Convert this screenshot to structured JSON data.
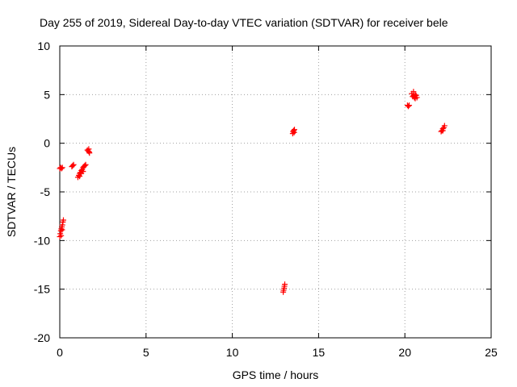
{
  "chart_data": {
    "type": "scatter",
    "title": "Day 255 of 2019, Sidereal Day-to-day VTEC variation (SDTVAR) for receiver bele",
    "xlabel": "GPS time / hours",
    "ylabel": "SDTVAR / TECUs",
    "xlim": [
      0,
      25
    ],
    "ylim": [
      -20,
      10
    ],
    "xticks": [
      0,
      5,
      10,
      15,
      20,
      25
    ],
    "yticks": [
      -20,
      -15,
      -10,
      -5,
      0,
      5,
      10
    ],
    "xtick_labels": [
      "0",
      "5",
      "10",
      "15",
      "20",
      "25"
    ],
    "ytick_labels": [
      "-20",
      "-15",
      "-10",
      "-5",
      "0",
      "5",
      "10"
    ],
    "grid": true,
    "marker": "+",
    "color": "#ff0000",
    "series": [
      {
        "name": "SDTVAR",
        "points": [
          [
            0.0,
            -2.6
          ],
          [
            0.05,
            -2.5
          ],
          [
            0.1,
            -2.6
          ],
          [
            0.15,
            -2.5
          ],
          [
            0.0,
            -9.6
          ],
          [
            0.03,
            -9.3
          ],
          [
            0.06,
            -9.0
          ],
          [
            0.09,
            -8.8
          ],
          [
            0.12,
            -8.6
          ],
          [
            0.15,
            -8.4
          ],
          [
            0.18,
            -8.1
          ],
          [
            0.21,
            -7.9
          ],
          [
            0.08,
            -9.5
          ],
          [
            0.14,
            -8.9
          ],
          [
            0.7,
            -2.4
          ],
          [
            0.75,
            -2.3
          ],
          [
            0.8,
            -2.2
          ],
          [
            1.05,
            -3.5
          ],
          [
            1.1,
            -3.3
          ],
          [
            1.15,
            -3.1
          ],
          [
            1.2,
            -3.0
          ],
          [
            1.25,
            -2.8
          ],
          [
            1.3,
            -2.7
          ],
          [
            1.35,
            -2.5
          ],
          [
            1.4,
            -2.4
          ],
          [
            1.45,
            -2.3
          ],
          [
            1.5,
            -2.2
          ],
          [
            1.15,
            -3.4
          ],
          [
            1.25,
            -3.1
          ],
          [
            1.35,
            -2.9
          ],
          [
            1.6,
            -0.7
          ],
          [
            1.65,
            -0.8
          ],
          [
            1.7,
            -0.9
          ],
          [
            1.72,
            -1.0
          ],
          [
            1.68,
            -0.6
          ],
          [
            12.95,
            -15.3
          ],
          [
            12.97,
            -15.1
          ],
          [
            13.0,
            -14.9
          ],
          [
            13.02,
            -14.7
          ],
          [
            13.04,
            -14.5
          ],
          [
            13.5,
            1.0
          ],
          [
            13.52,
            1.2
          ],
          [
            13.55,
            1.3
          ],
          [
            13.58,
            1.1
          ],
          [
            13.6,
            1.4
          ],
          [
            20.15,
            3.9
          ],
          [
            20.2,
            3.8
          ],
          [
            20.25,
            3.9
          ],
          [
            20.4,
            5.1
          ],
          [
            20.45,
            4.8
          ],
          [
            20.5,
            5.3
          ],
          [
            20.55,
            4.7
          ],
          [
            20.6,
            5.0
          ],
          [
            20.65,
            4.9
          ],
          [
            20.7,
            4.7
          ],
          [
            20.5,
            4.9
          ],
          [
            20.6,
            4.6
          ],
          [
            22.1,
            1.2
          ],
          [
            22.15,
            1.3
          ],
          [
            22.2,
            1.5
          ],
          [
            22.25,
            1.6
          ],
          [
            22.3,
            1.8
          ],
          [
            22.2,
            1.3
          ]
        ]
      }
    ]
  }
}
